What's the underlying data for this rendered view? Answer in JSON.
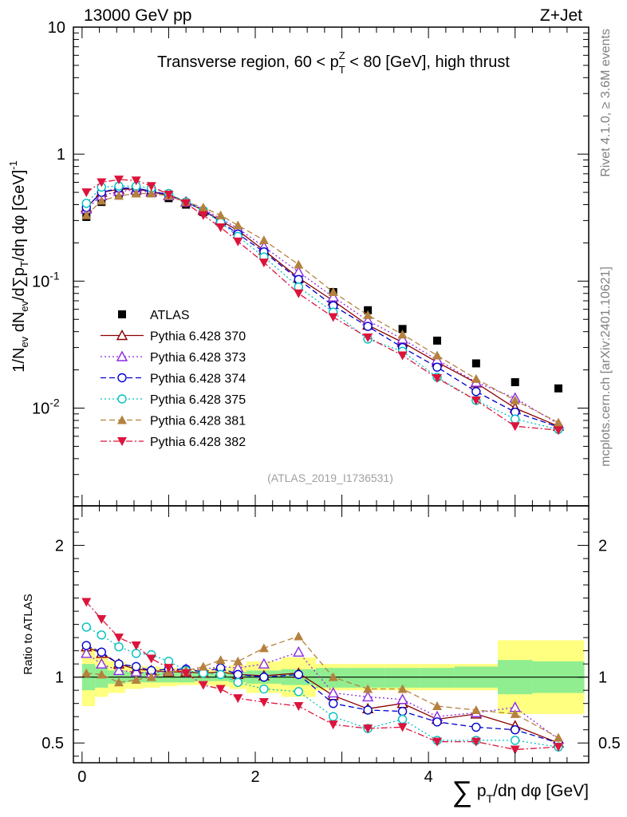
{
  "header": {
    "energy_label": "13000 GeV pp",
    "process_label": "Z+Jet"
  },
  "side": {
    "rivet_label": "Rivet 4.1.0, ≥ 3.6M events",
    "mcplots_label": "mcplots.cern.ch [arXiv:2401.10621]"
  },
  "chart_data": [
    {
      "type": "line",
      "panel": "main",
      "title": "Transverse region, 60 < p_T^Z < 80 [GeV], high thrust",
      "ylabel": "1/N_ev dN_ev/d∑p_T/dη dφ [GeV]^-1",
      "xlabel": "∑p_T/dη dφ [GeV]",
      "yscale": "log",
      "xlim": [
        -0.1,
        5.85
      ],
      "ylim": [
        0.0017,
        10
      ],
      "x_ticks": [
        "0",
        "2",
        "4"
      ],
      "y_ticks": [
        "10^-2",
        "10^-1",
        "1",
        "10"
      ],
      "watermark": "(ATLAS_2019_I1736531)",
      "legend_position": "middle-left",
      "x": [
        0.05,
        0.225,
        0.425,
        0.625,
        0.8,
        1.0,
        1.2,
        1.4,
        1.6,
        1.8,
        2.1,
        2.5,
        2.9,
        3.3,
        3.7,
        4.1,
        4.55,
        5.0,
        5.5
      ],
      "series": [
        {
          "name": "ATLAS",
          "style": "marker",
          "marker": "square",
          "color": "#000000",
          "values": [
            0.32,
            0.42,
            0.49,
            0.5,
            0.49,
            0.45,
            0.4,
            0.35,
            0.29,
            0.245,
            0.172,
            0.103,
            0.082,
            0.059,
            0.042,
            0.034,
            0.0225,
            0.016,
            0.0143
          ]
        },
        {
          "name": "Pythia 6.428 370",
          "style": "solid",
          "marker": "triangle-open",
          "color": "#8b0000",
          "values": [
            0.38,
            0.5,
            0.53,
            0.53,
            0.51,
            0.47,
            0.42,
            0.36,
            0.3,
            0.25,
            0.175,
            0.106,
            0.07,
            0.045,
            0.033,
            0.023,
            0.0158,
            0.01,
            0.0072
          ]
        },
        {
          "name": "Pythia 6.428 373",
          "style": "dotted",
          "marker": "triangle-open",
          "color": "#8a2be2",
          "values": [
            0.37,
            0.47,
            0.51,
            0.52,
            0.5,
            0.47,
            0.42,
            0.37,
            0.31,
            0.26,
            0.186,
            0.118,
            0.075,
            0.049,
            0.035,
            0.024,
            0.016,
            0.012,
            0.0075
          ]
        },
        {
          "name": "Pythia 6.428 374",
          "style": "dashed",
          "marker": "circle-open",
          "color": "#0000cd",
          "values": [
            0.38,
            0.5,
            0.54,
            0.54,
            0.51,
            0.48,
            0.42,
            0.36,
            0.295,
            0.235,
            0.17,
            0.103,
            0.064,
            0.044,
            0.03,
            0.021,
            0.0135,
            0.0093,
            0.0071
          ]
        },
        {
          "name": "Pythia 6.428 375",
          "style": "dotted",
          "marker": "circle-open",
          "color": "#00c0c0",
          "values": [
            0.41,
            0.55,
            0.56,
            0.56,
            0.54,
            0.49,
            0.42,
            0.36,
            0.29,
            0.225,
            0.155,
            0.09,
            0.057,
            0.035,
            0.028,
            0.0175,
            0.0115,
            0.0082,
            0.0068
          ]
        },
        {
          "name": "Pythia 6.428 381",
          "style": "dashed",
          "marker": "triangle-filled",
          "color": "#b5813f",
          "values": [
            0.33,
            0.43,
            0.47,
            0.49,
            0.49,
            0.47,
            0.42,
            0.38,
            0.33,
            0.275,
            0.21,
            0.135,
            0.082,
            0.054,
            0.038,
            0.026,
            0.017,
            0.0115,
            0.0077
          ]
        },
        {
          "name": "Pythia 6.428 382",
          "style": "dashdot",
          "marker": "triangle-down-filled",
          "color": "#dc143c",
          "values": [
            0.5,
            0.6,
            0.63,
            0.62,
            0.56,
            0.48,
            0.41,
            0.33,
            0.265,
            0.205,
            0.14,
            0.08,
            0.052,
            0.036,
            0.026,
            0.0172,
            0.0115,
            0.0072,
            0.0067
          ]
        }
      ],
      "legend": [
        "ATLAS",
        "Pythia 6.428 370",
        "Pythia 6.428 373",
        "Pythia 6.428 374",
        "Pythia 6.428 375",
        "Pythia 6.428 381",
        "Pythia 6.428 382"
      ]
    },
    {
      "type": "line",
      "panel": "ratio",
      "ylabel": "Ratio to ATLAS",
      "xlabel": "∑p_T/dη dφ [GeV]",
      "xlim": [
        -0.1,
        5.85
      ],
      "ylim": [
        0.35,
        2.3
      ],
      "y_ticks": [
        "0.5",
        "1",
        "2"
      ],
      "reference_line": 1.0,
      "bands": {
        "x_edges": [
          0.0,
          0.15,
          0.3,
          0.5,
          0.7,
          0.9,
          1.1,
          1.3,
          1.5,
          1.7,
          1.9,
          2.3,
          2.7,
          3.1,
          3.5,
          3.9,
          4.3,
          4.8,
          5.2,
          5.8
        ],
        "inner_low": [
          0.9,
          0.92,
          0.95,
          0.96,
          0.96,
          0.96,
          0.96,
          0.97,
          0.97,
          0.96,
          0.95,
          0.94,
          0.92,
          0.92,
          0.92,
          0.92,
          0.92,
          0.87,
          0.88
        ],
        "inner_high": [
          1.1,
          1.08,
          1.05,
          1.04,
          1.04,
          1.04,
          1.04,
          1.03,
          1.03,
          1.04,
          1.05,
          1.06,
          1.07,
          1.07,
          1.07,
          1.07,
          1.08,
          1.13,
          1.12
        ],
        "outer_low": [
          0.78,
          0.85,
          0.88,
          0.91,
          0.92,
          0.93,
          0.94,
          0.94,
          0.93,
          0.91,
          0.88,
          0.85,
          0.9,
          0.9,
          0.9,
          0.9,
          0.9,
          0.72,
          0.72
        ],
        "outer_high": [
          1.22,
          1.15,
          1.12,
          1.09,
          1.08,
          1.07,
          1.06,
          1.06,
          1.07,
          1.09,
          1.12,
          1.15,
          1.1,
          1.1,
          1.1,
          1.1,
          1.1,
          1.28,
          1.28
        ]
      },
      "series": [
        {
          "name": "Pythia 6.428 370",
          "values": [
            1.23,
            1.18,
            1.1,
            1.06,
            1.05,
            1.04,
            1.04,
            1.03,
            1.04,
            1.02,
            1.01,
            1.03,
            0.86,
            0.76,
            0.8,
            0.68,
            0.72,
            0.63,
            0.5
          ]
        },
        {
          "name": "Pythia 6.428 373",
          "values": [
            1.18,
            1.1,
            1.05,
            1.04,
            1.03,
            1.05,
            1.06,
            1.06,
            1.08,
            1.07,
            1.1,
            1.19,
            0.88,
            0.85,
            0.83,
            0.7,
            0.73,
            0.77,
            0.53
          ]
        },
        {
          "name": "Pythia 6.428 374",
          "values": [
            1.24,
            1.19,
            1.1,
            1.08,
            1.05,
            1.06,
            1.06,
            1.04,
            1.07,
            1.02,
            1.0,
            1.02,
            0.8,
            0.75,
            0.74,
            0.66,
            0.62,
            0.6,
            0.5
          ]
        },
        {
          "name": "Pythia 6.428 375",
          "values": [
            1.38,
            1.32,
            1.23,
            1.18,
            1.17,
            1.12,
            1.05,
            1.03,
            1.02,
            0.96,
            0.91,
            0.89,
            0.7,
            0.61,
            0.68,
            0.52,
            0.52,
            0.52,
            0.47
          ]
        },
        {
          "name": "Pythia 6.428 381",
          "values": [
            1.03,
            1.02,
            0.96,
            0.98,
            1.0,
            1.04,
            1.05,
            1.08,
            1.13,
            1.12,
            1.22,
            1.31,
            1.0,
            0.91,
            0.91,
            0.78,
            0.75,
            0.72,
            0.54
          ]
        },
        {
          "name": "Pythia 6.428 382",
          "values": [
            1.57,
            1.44,
            1.3,
            1.24,
            1.14,
            1.07,
            1.03,
            0.94,
            0.91,
            0.84,
            0.81,
            0.78,
            0.64,
            0.61,
            0.62,
            0.51,
            0.51,
            0.45,
            0.47
          ]
        }
      ]
    }
  ]
}
